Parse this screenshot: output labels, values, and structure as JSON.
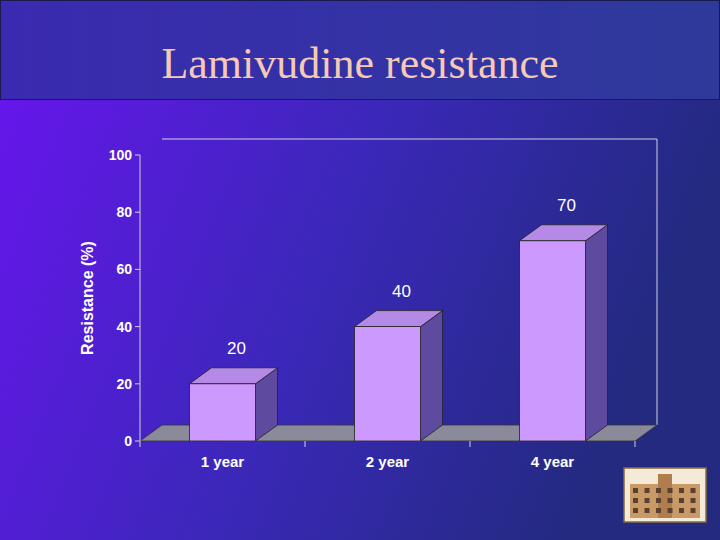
{
  "chart_data": {
    "type": "bar",
    "title": "Lamivudine resistance",
    "y_label": "Resistance (%)",
    "categories": [
      "1 year",
      "2 year",
      "4 year"
    ],
    "values": [
      20,
      40,
      70
    ],
    "color": "#cc99ff",
    "ylim": [
      0,
      100
    ],
    "yticks": [
      0,
      20,
      40,
      60,
      80,
      100
    ],
    "grid": false,
    "data_labels": true
  }
}
